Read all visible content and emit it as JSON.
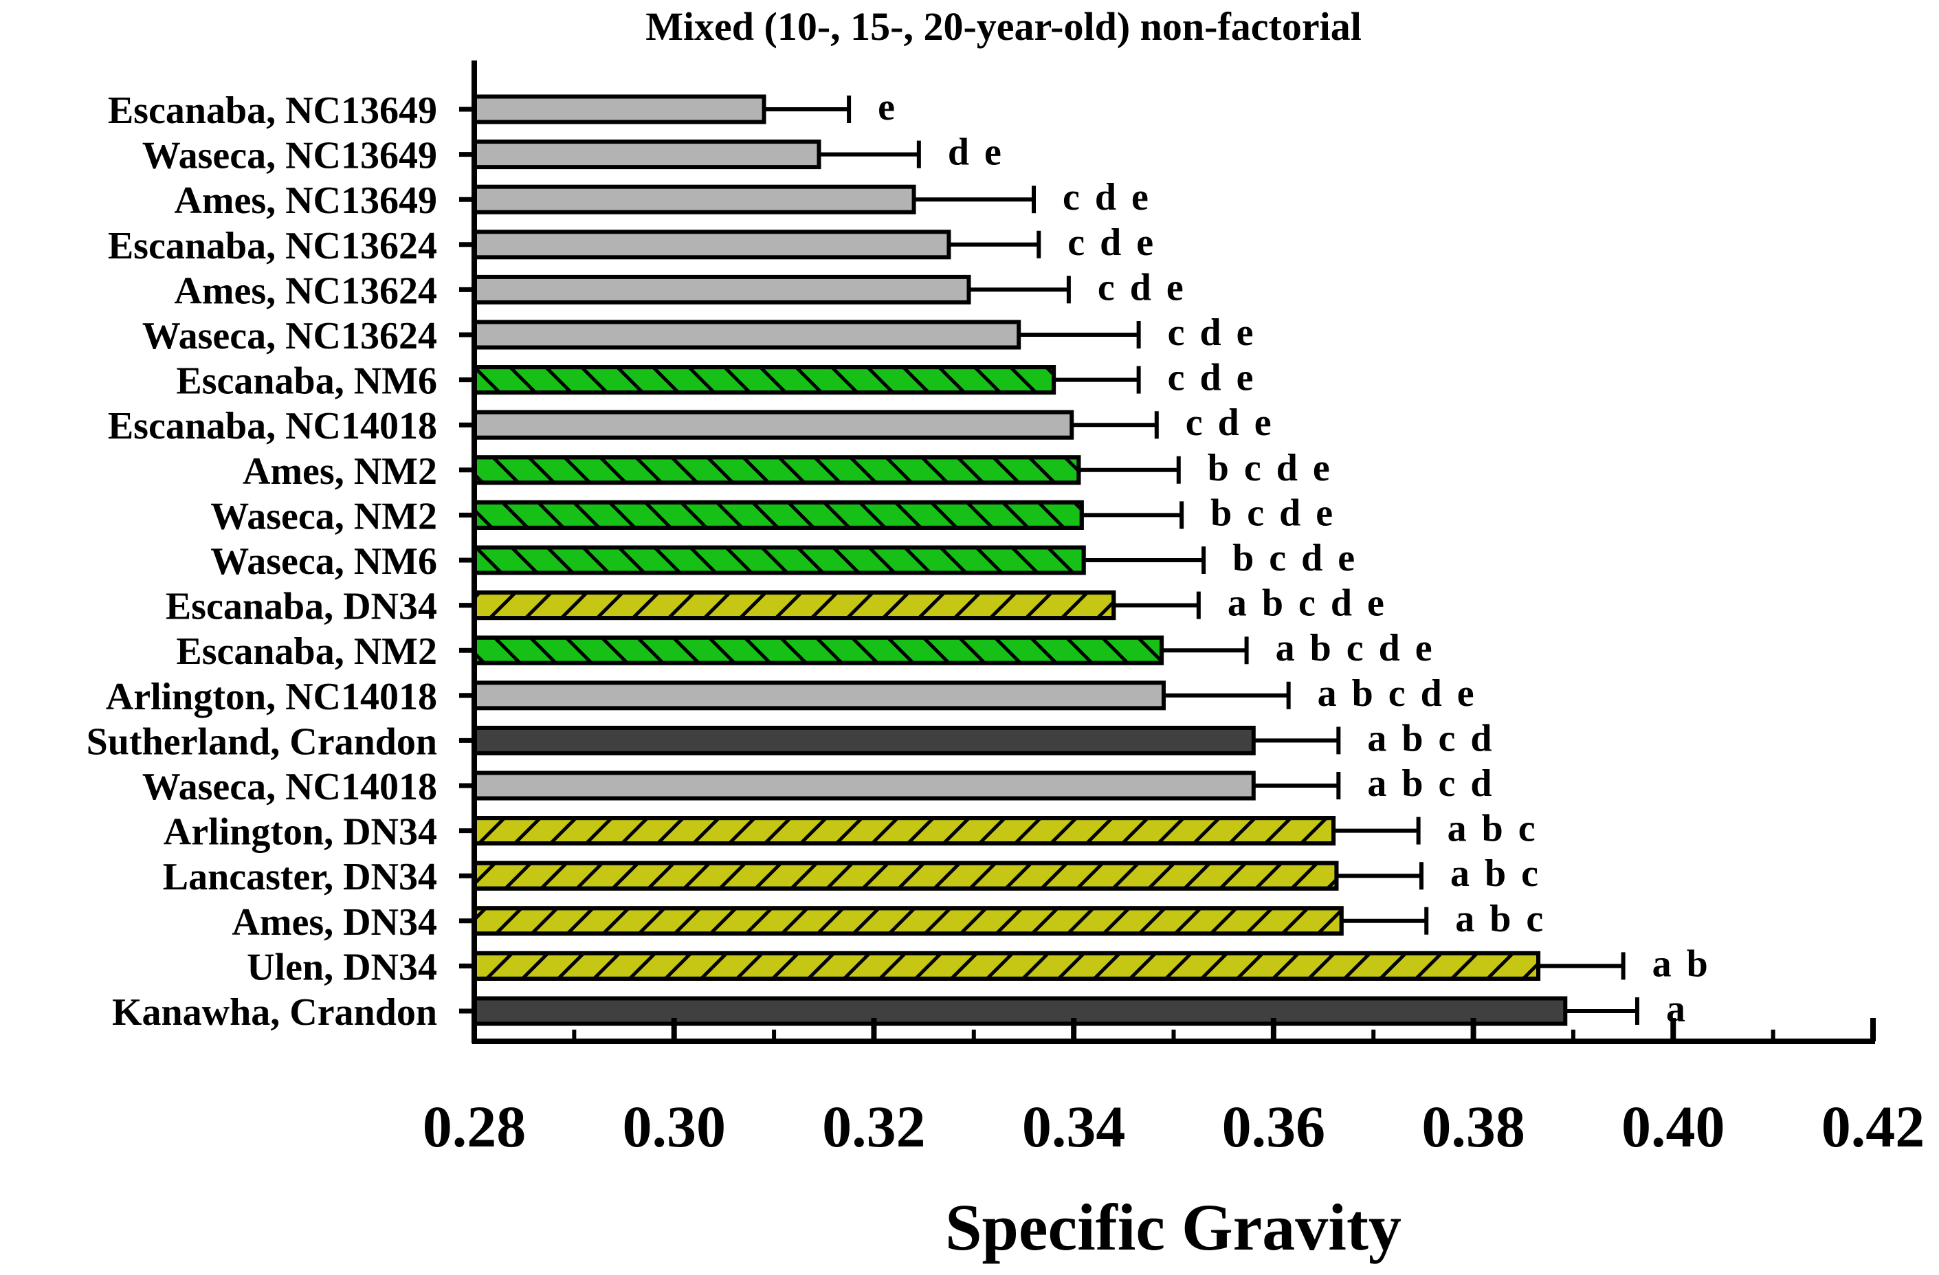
{
  "chart_data": {
    "type": "bar",
    "orientation": "horizontal",
    "title": "Mixed (10-, 15-, 20-year-old) non-factorial",
    "xlabel": "Specific Gravity",
    "ylabel": "",
    "xlim": [
      0.28,
      0.42
    ],
    "xticks": [
      "0.28",
      "0.30",
      "0.32",
      "0.34",
      "0.36",
      "0.38",
      "0.40",
      "0.42"
    ],
    "xtick_values": [
      0.28,
      0.3,
      0.32,
      0.34,
      0.36,
      0.38,
      0.4,
      0.42
    ],
    "minor_ticks": [
      0.29,
      0.31,
      0.33,
      0.35,
      0.37,
      0.39,
      0.41
    ],
    "categories": [
      "Escanaba, NC13649",
      "Waseca, NC13649",
      "Ames, NC13649",
      "Escanaba, NC13624",
      "Ames, NC13624",
      "Waseca, NC13624",
      "Escanaba, NM6",
      "Escanaba, NC14018",
      "Ames, NM2",
      "Waseca, NM2",
      "Waseca, NM6",
      "Escanaba, DN34",
      "Escanaba, NM2",
      "Arlington, NC14018",
      "Sutherland, Crandon",
      "Waseca, NC14018",
      "Arlington, DN34",
      "Lancaster, DN34",
      "Ames, DN34",
      "Ulen, DN34",
      "Kanawha, Crandon"
    ],
    "values": [
      0.309,
      0.3145,
      0.324,
      0.3275,
      0.3295,
      0.3345,
      0.338,
      0.3398,
      0.3405,
      0.3408,
      0.341,
      0.344,
      0.3488,
      0.349,
      0.358,
      0.358,
      0.366,
      0.3663,
      0.3668,
      0.3865,
      0.3892
    ],
    "error": [
      0.0085,
      0.01,
      0.012,
      0.009,
      0.01,
      0.012,
      0.0085,
      0.0085,
      0.01,
      0.01,
      0.012,
      0.0085,
      0.0085,
      0.0125,
      0.0085,
      0.0085,
      0.0085,
      0.0085,
      0.0085,
      0.0085,
      0.0072
    ],
    "groups": [
      "NC",
      "NC",
      "NC",
      "NC",
      "NC",
      "NC",
      "NM",
      "NC",
      "NM",
      "NM",
      "NM",
      "DN",
      "NM",
      "NC",
      "Crandon",
      "NC",
      "DN",
      "DN",
      "DN",
      "DN",
      "Crandon"
    ],
    "letters": [
      "e",
      "d e",
      "c d e",
      "c d e",
      "c d e",
      "c d e",
      "c d e",
      "c d e",
      "b c d e",
      "b c d e",
      "b c d e",
      "a b c d e",
      "a b c d e",
      "a b c d e",
      "a b c d",
      "a b c d",
      "a b c",
      "a b c",
      "a b c",
      "a b",
      "a"
    ],
    "group_styles": {
      "NC": {
        "fill": "#b3b3b3",
        "hatch": "none"
      },
      "NM": {
        "fill": "#16c016",
        "hatch": "back"
      },
      "DN": {
        "fill": "#c6c614",
        "hatch": "fwd"
      },
      "Crandon": {
        "fill": "#404040",
        "hatch": "none"
      }
    },
    "grid": false,
    "legend": "none"
  }
}
